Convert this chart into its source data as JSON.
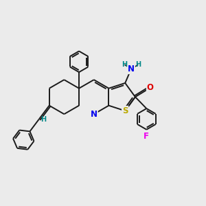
{
  "bg_color": "#ebebeb",
  "bond_color": "#1a1a1a",
  "atom_colors": {
    "N": "#0000ee",
    "S": "#bbaa00",
    "O": "#dd0000",
    "F": "#ee00ee",
    "H": "#008888",
    "C": "#1a1a1a"
  },
  "figsize": [
    3.0,
    3.0
  ],
  "dpi": 100,
  "lw": 1.4
}
